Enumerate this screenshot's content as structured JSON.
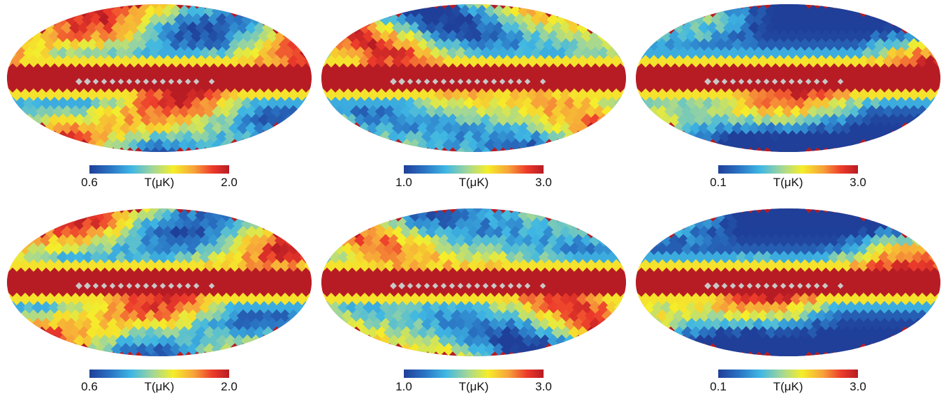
{
  "chart_data": [
    {
      "type": "heatmap",
      "projection": "mollweide",
      "unit_label": "T(μK)",
      "scale_min": "0.6",
      "scale_max": "2.0",
      "vmin": 0.6,
      "vmax": 2.0,
      "colormap": "jet",
      "masked_color": "#c8c8c8",
      "saturated_band": true,
      "panel_position": "top-left"
    },
    {
      "type": "heatmap",
      "projection": "mollweide",
      "unit_label": "T(μK)",
      "scale_min": "1.0",
      "scale_max": "3.0",
      "vmin": 1.0,
      "vmax": 3.0,
      "colormap": "jet",
      "masked_color": "#c8c8c8",
      "saturated_band": true,
      "panel_position": "top-middle"
    },
    {
      "type": "heatmap",
      "projection": "mollweide",
      "unit_label": "T(μK)",
      "scale_min": "0.1",
      "scale_max": "3.0",
      "vmin": 0.1,
      "vmax": 3.0,
      "colormap": "jet",
      "masked_color": "#c8c8c8",
      "saturated_band": true,
      "panel_position": "top-right"
    },
    {
      "type": "heatmap",
      "projection": "mollweide",
      "unit_label": "T(μK)",
      "scale_min": "0.6",
      "scale_max": "2.0",
      "vmin": 0.6,
      "vmax": 2.0,
      "colormap": "jet",
      "masked_color": "#c8c8c8",
      "saturated_band": true,
      "panel_position": "bottom-left"
    },
    {
      "type": "heatmap",
      "projection": "mollweide",
      "unit_label": "T(μK)",
      "scale_min": "1.0",
      "scale_max": "3.0",
      "vmin": 1.0,
      "vmax": 3.0,
      "colormap": "jet",
      "masked_color": "#c8c8c8",
      "saturated_band": true,
      "panel_position": "bottom-middle"
    },
    {
      "type": "heatmap",
      "projection": "mollweide",
      "unit_label": "T(μK)",
      "scale_min": "0.1",
      "scale_max": "3.0",
      "vmin": 0.1,
      "vmax": 3.0,
      "colormap": "jet",
      "masked_color": "#c8c8c8",
      "saturated_band": true,
      "panel_position": "bottom-right"
    }
  ]
}
